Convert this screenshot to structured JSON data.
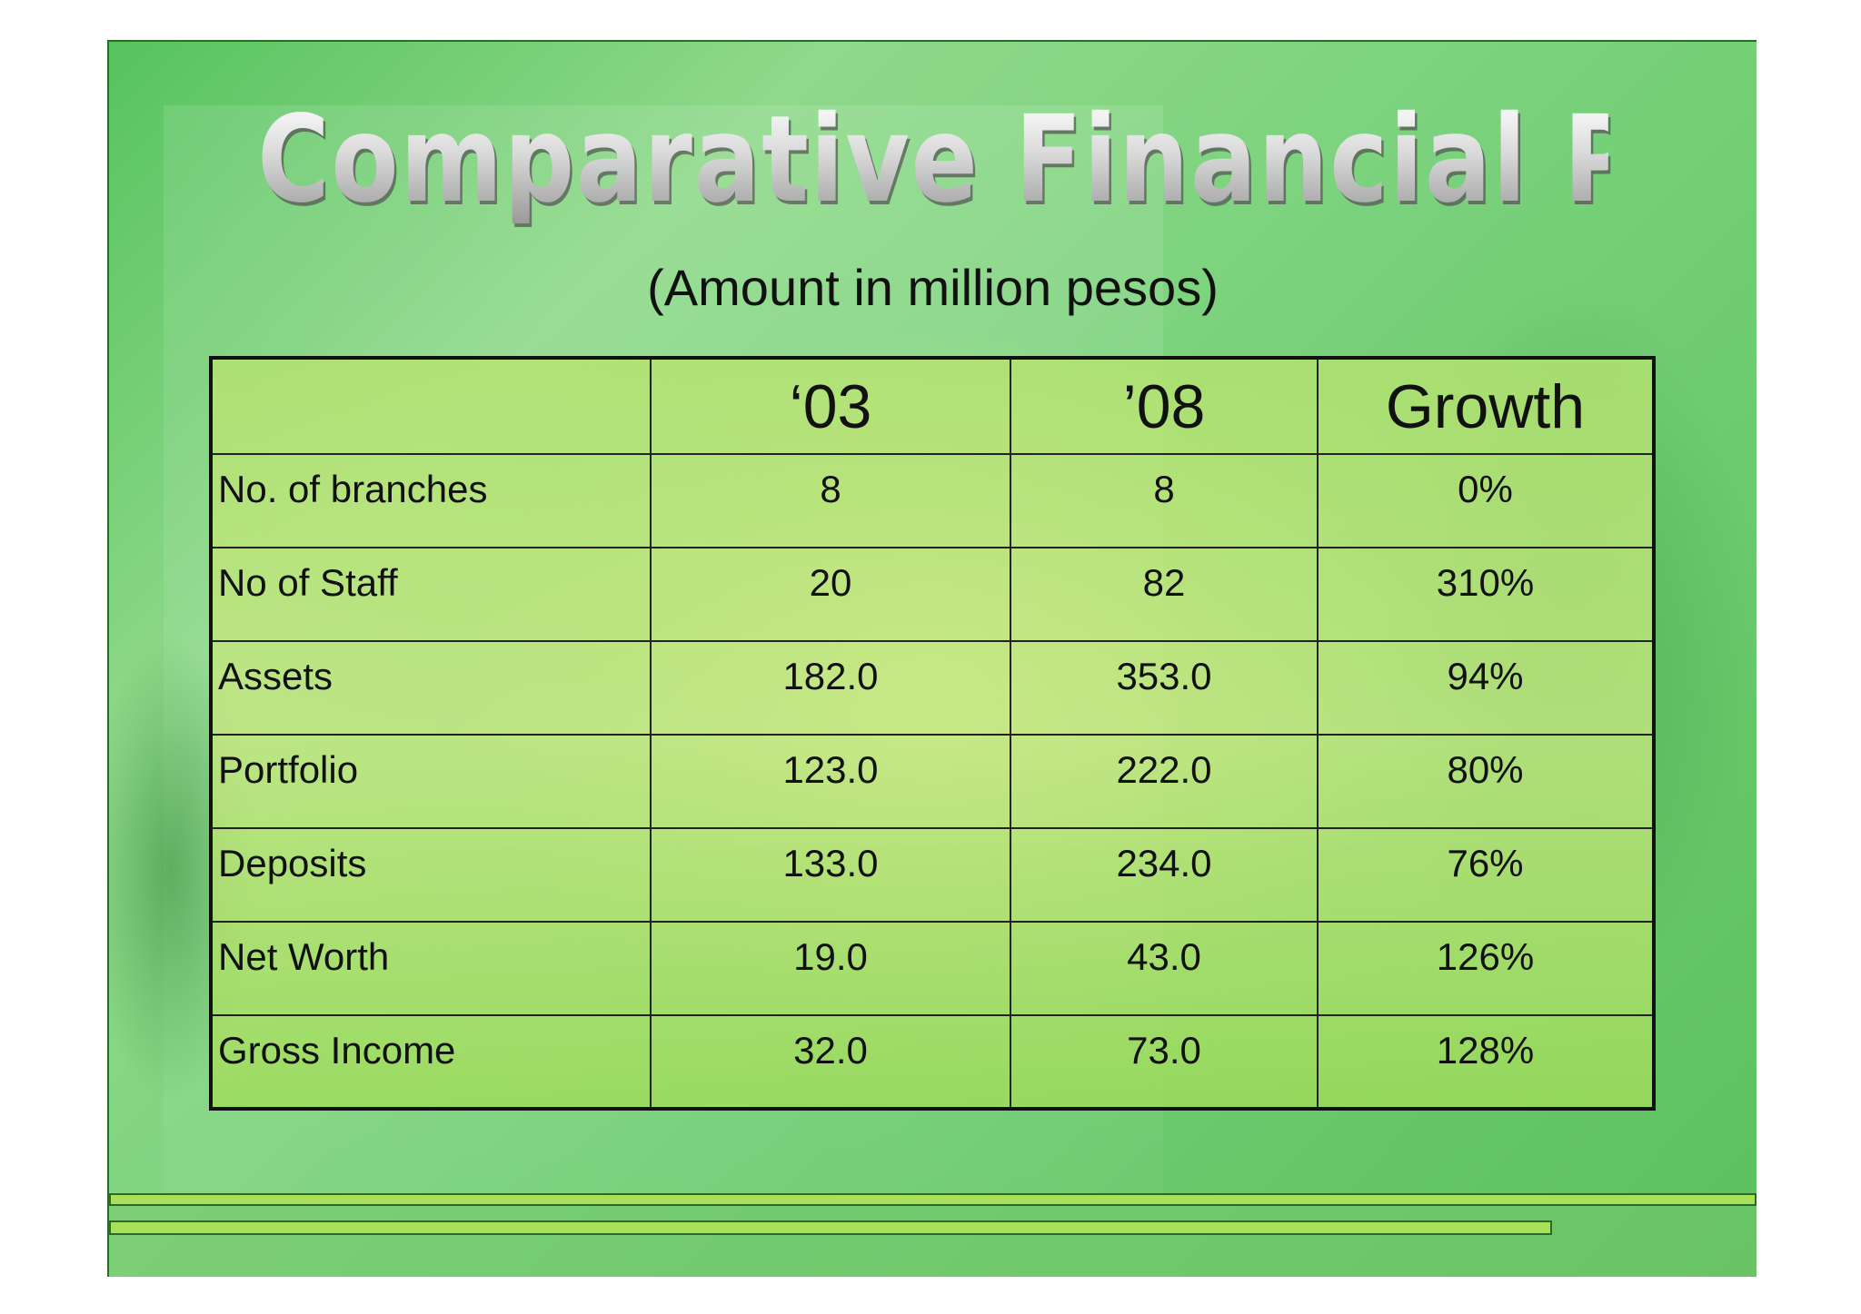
{
  "slide": {
    "title": "Comparative Financial Performance",
    "subtitle": "(Amount in million pesos)"
  },
  "table": {
    "headers": [
      "",
      "‘03",
      "’08",
      "Growth"
    ],
    "rows": [
      [
        "No. of branches",
        "8",
        "8",
        "0%"
      ],
      [
        "No of Staff",
        "20",
        "82",
        "310%"
      ],
      [
        "Assets",
        "182.0",
        "353.0",
        "94%"
      ],
      [
        "Portfolio",
        "123.0",
        "222.0",
        "80%"
      ],
      [
        "Deposits",
        "133.0",
        "234.0",
        "76%"
      ],
      [
        "Net Worth",
        "19.0",
        "43.0",
        "126%"
      ],
      [
        "Gross Income",
        "32.0",
        "73.0",
        "128%"
      ]
    ]
  },
  "colors": {
    "background": "#7ad27c",
    "table_fill": "#b7e36f",
    "accent_bar": "#a8e05a"
  }
}
